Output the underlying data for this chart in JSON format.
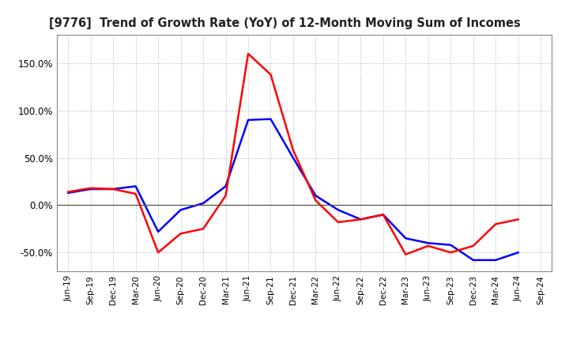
{
  "title": "[9776]  Trend of Growth Rate (YoY) of 12-Month Moving Sum of Incomes",
  "x_labels": [
    "Jun-19",
    "Sep-19",
    "Dec-19",
    "Mar-20",
    "Jun-20",
    "Sep-20",
    "Dec-20",
    "Mar-21",
    "Jun-21",
    "Sep-21",
    "Dec-21",
    "Mar-22",
    "Jun-22",
    "Sep-22",
    "Dec-22",
    "Mar-23",
    "Jun-23",
    "Sep-23",
    "Dec-23",
    "Mar-24",
    "Jun-24",
    "Sep-24"
  ],
  "ordinary_income": [
    0.13,
    0.17,
    0.17,
    0.2,
    -0.28,
    -0.05,
    0.02,
    0.2,
    0.9,
    0.91,
    0.5,
    0.1,
    -0.05,
    -0.15,
    -0.1,
    -0.35,
    -0.4,
    -0.42,
    -0.58,
    -0.58,
    -0.5,
    null
  ],
  "net_income": [
    0.14,
    0.18,
    0.17,
    0.12,
    -0.5,
    -0.3,
    -0.25,
    0.1,
    1.6,
    1.38,
    0.58,
    0.05,
    -0.18,
    -0.15,
    -0.1,
    -0.52,
    -0.43,
    -0.5,
    -0.43,
    -0.2,
    -0.15,
    null
  ],
  "ordinary_color": "#0000ff",
  "net_color": "#ff0000",
  "ylim": [
    -0.7,
    1.8
  ],
  "yticks": [
    -0.5,
    0.0,
    0.5,
    1.0,
    1.5
  ],
  "ytick_labels": [
    "-50.0%",
    "0.0%",
    "50.0%",
    "100.0%",
    "150.0%"
  ],
  "background_color": "#ffffff",
  "grid_color": "#b0b0b0"
}
